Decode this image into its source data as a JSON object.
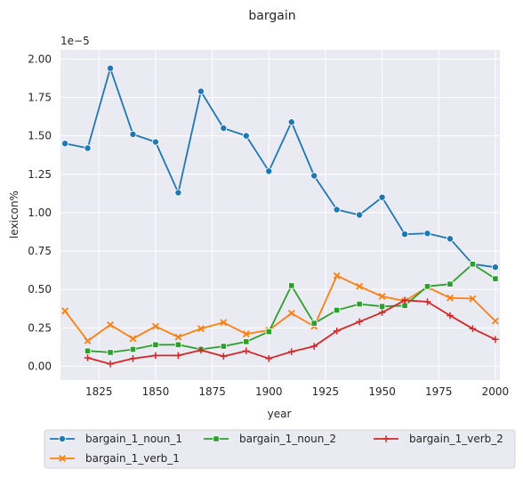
{
  "chart_data": {
    "type": "line",
    "title": "bargain",
    "xlabel": "year",
    "ylabel": "lexicon%",
    "y_multiplier_label": "1e−5",
    "xlim": [
      1808,
      2002
    ],
    "ylim": [
      -0.09,
      2.06
    ],
    "x_ticks": [
      1825,
      1850,
      1875,
      1900,
      1925,
      1950,
      1975,
      2000
    ],
    "y_ticks": [
      0.0,
      0.25,
      0.5,
      0.75,
      1.0,
      1.25,
      1.5,
      1.75,
      2.0
    ],
    "y_tick_labels": [
      "0.00",
      "0.25",
      "0.50",
      "0.75",
      "1.00",
      "1.25",
      "1.50",
      "1.75",
      "2.00"
    ],
    "grid": true,
    "legend_position": "below plot",
    "series": [
      {
        "name": "bargain_1_noun_1",
        "color": "#1f77b4",
        "marker": "circle",
        "x": [
          1810,
          1820,
          1830,
          1840,
          1850,
          1860,
          1870,
          1880,
          1890,
          1900,
          1910,
          1920,
          1930,
          1940,
          1950,
          1960,
          1970,
          1980,
          1990,
          2000
        ],
        "values": [
          1.45,
          1.42,
          1.94,
          1.51,
          1.46,
          1.13,
          1.79,
          1.55,
          1.5,
          1.27,
          1.59,
          1.24,
          1.02,
          0.985,
          1.1,
          0.86,
          0.865,
          0.83,
          0.665,
          0.645
        ]
      },
      {
        "name": "bargain_1_verb_1",
        "color": "#ff7f0e",
        "marker": "x",
        "x": [
          1810,
          1820,
          1830,
          1840,
          1850,
          1860,
          1870,
          1880,
          1890,
          1900,
          1910,
          1920,
          1930,
          1940,
          1950,
          1960,
          1970,
          1980,
          1990,
          2000
        ],
        "values": [
          0.36,
          0.165,
          0.27,
          0.18,
          0.26,
          0.19,
          0.245,
          0.285,
          0.21,
          0.235,
          0.345,
          0.26,
          0.59,
          0.52,
          0.455,
          0.425,
          0.515,
          0.445,
          0.44,
          0.295
        ]
      },
      {
        "name": "bargain_1_noun_2",
        "color": "#2ca02c",
        "marker": "square",
        "x": [
          1820,
          1830,
          1840,
          1850,
          1860,
          1870,
          1880,
          1890,
          1900,
          1910,
          1920,
          1930,
          1940,
          1950,
          1960,
          1970,
          1980,
          1990,
          2000
        ],
        "values": [
          0.1,
          0.09,
          0.11,
          0.14,
          0.14,
          0.11,
          0.13,
          0.16,
          0.225,
          0.525,
          0.28,
          0.365,
          0.405,
          0.39,
          0.395,
          0.52,
          0.535,
          0.665,
          0.57
        ]
      },
      {
        "name": "bargain_1_verb_2",
        "color": "#d62728",
        "marker": "plus",
        "x": [
          1820,
          1830,
          1840,
          1850,
          1860,
          1870,
          1880,
          1890,
          1900,
          1910,
          1920,
          1930,
          1940,
          1950,
          1960,
          1970,
          1980,
          1990,
          2000
        ],
        "values": [
          0.055,
          0.015,
          0.05,
          0.07,
          0.07,
          0.105,
          0.065,
          0.1,
          0.05,
          0.095,
          0.13,
          0.23,
          0.29,
          0.35,
          0.43,
          0.42,
          0.33,
          0.245,
          0.175
        ]
      }
    ]
  },
  "legend": {
    "entries": [
      "bargain_1_noun_1",
      "bargain_1_verb_1",
      "bargain_1_noun_2",
      "bargain_1_verb_2"
    ]
  }
}
